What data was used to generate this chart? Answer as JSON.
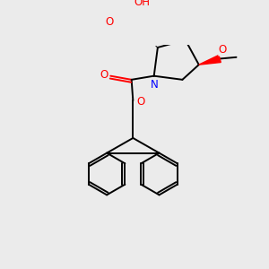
{
  "bg_color": "#ebebeb",
  "atom_colors": {
    "C": "#000000",
    "O": "#ff0000",
    "N": "#0000ff",
    "H": "#5f8080"
  },
  "bond_lw": 1.4,
  "figsize": [
    3.0,
    3.0
  ],
  "dpi": 100
}
